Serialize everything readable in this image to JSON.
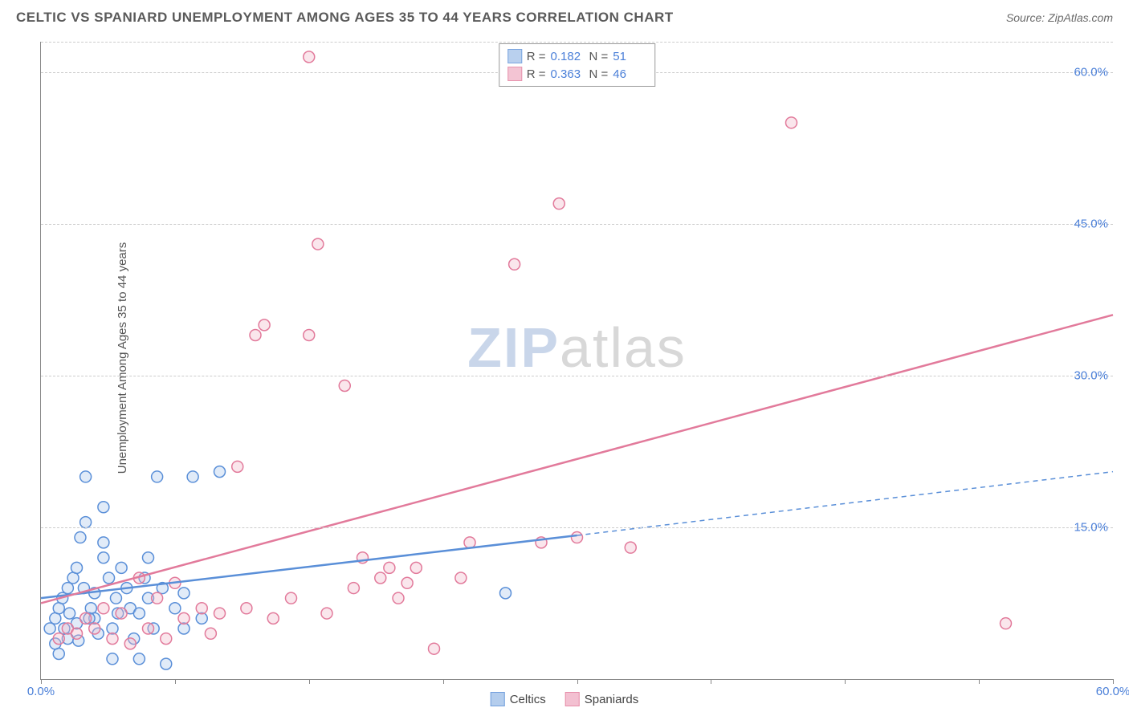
{
  "title": "CELTIC VS SPANIARD UNEMPLOYMENT AMONG AGES 35 TO 44 YEARS CORRELATION CHART",
  "source_prefix": "Source: ",
  "source_name": "ZipAtlas.com",
  "ylabel": "Unemployment Among Ages 35 to 44 years",
  "watermark_bold": "ZIP",
  "watermark_light": "atlas",
  "watermark_color_bold": "#c9d6ea",
  "watermark_color_light": "#d8d8d8",
  "chart": {
    "type": "scatter",
    "background_color": "#ffffff",
    "grid_color": "#cccccc",
    "axis_color": "#888888",
    "xlim": [
      0,
      60
    ],
    "ylim": [
      0,
      63
    ],
    "xticks": [
      0,
      7.5,
      15,
      22.5,
      30,
      37.5,
      45,
      52.5,
      60
    ],
    "xtick_labels": {
      "0": "0.0%",
      "60": "60.0%"
    },
    "yticks": [
      15,
      30,
      45,
      60
    ],
    "ytick_labels": {
      "15": "15.0%",
      "30": "30.0%",
      "45": "45.0%",
      "60": "60.0%"
    },
    "grid_top_extra": 63,
    "marker_radius": 7,
    "marker_stroke_width": 1.5,
    "marker_fill_opacity": 0.35,
    "series": [
      {
        "name": "Celtics",
        "color_stroke": "#5a8fd8",
        "color_fill": "#a8c5ea",
        "R": "0.182",
        "N": "51",
        "trend": {
          "x1": 0,
          "y1": 8,
          "x2": 30,
          "y2": 14.2,
          "dash_to_x": 60,
          "dash_to_y": 20.5,
          "width": 2.5
        },
        "points": [
          [
            0.5,
            5
          ],
          [
            0.8,
            6
          ],
          [
            1,
            7
          ],
          [
            1.2,
            8
          ],
          [
            1.5,
            4
          ],
          [
            1.5,
            9
          ],
          [
            1.8,
            10
          ],
          [
            2,
            5.5
          ],
          [
            2,
            11
          ],
          [
            2.2,
            14
          ],
          [
            2.5,
            15.5
          ],
          [
            2.5,
            20
          ],
          [
            2.8,
            7
          ],
          [
            3,
            6
          ],
          [
            3,
            8.5
          ],
          [
            3.5,
            12
          ],
          [
            3.5,
            13.5
          ],
          [
            3.5,
            17
          ],
          [
            4,
            2
          ],
          [
            4,
            5
          ],
          [
            4.2,
            8
          ],
          [
            4.5,
            11
          ],
          [
            5,
            7
          ],
          [
            5.5,
            2
          ],
          [
            5.5,
            6.5
          ],
          [
            6,
            8
          ],
          [
            6,
            12
          ],
          [
            6.5,
            20
          ],
          [
            7,
            1.5
          ],
          [
            7.5,
            7
          ],
          [
            8,
            5
          ],
          [
            8,
            8.5
          ],
          [
            8.5,
            20
          ],
          [
            9,
            6
          ],
          [
            10,
            20.5
          ],
          [
            26,
            8.5
          ],
          [
            0.8,
            3.5
          ],
          [
            1,
            2.5
          ],
          [
            1.3,
            5
          ],
          [
            1.6,
            6.5
          ],
          [
            2.1,
            3.8
          ],
          [
            2.4,
            9
          ],
          [
            2.7,
            6
          ],
          [
            3.2,
            4.5
          ],
          [
            3.8,
            10
          ],
          [
            4.3,
            6.5
          ],
          [
            4.8,
            9
          ],
          [
            5.2,
            4
          ],
          [
            5.8,
            10
          ],
          [
            6.3,
            5
          ],
          [
            6.8,
            9
          ]
        ]
      },
      {
        "name": "Spaniards",
        "color_stroke": "#e27a9b",
        "color_fill": "#f1b6c9",
        "R": "0.363",
        "N": "46",
        "trend": {
          "x1": 0,
          "y1": 7.5,
          "x2": 60,
          "y2": 36,
          "width": 2.5
        },
        "points": [
          [
            1,
            4
          ],
          [
            1.5,
            5
          ],
          [
            2,
            4.5
          ],
          [
            2.5,
            6
          ],
          [
            3,
            5
          ],
          [
            3.5,
            7
          ],
          [
            4,
            4
          ],
          [
            4.5,
            6.5
          ],
          [
            5,
            3.5
          ],
          [
            5.5,
            10
          ],
          [
            6,
            5
          ],
          [
            7,
            4
          ],
          [
            7.5,
            9.5
          ],
          [
            8,
            6
          ],
          [
            9,
            7
          ],
          [
            9.5,
            4.5
          ],
          [
            10,
            6.5
          ],
          [
            11,
            21
          ],
          [
            12,
            34
          ],
          [
            12.5,
            35
          ],
          [
            13,
            6
          ],
          [
            14,
            8
          ],
          [
            15,
            34
          ],
          [
            15,
            61.5
          ],
          [
            15.5,
            43
          ],
          [
            16,
            6.5
          ],
          [
            17,
            29
          ],
          [
            17.5,
            9
          ],
          [
            18,
            12
          ],
          [
            19,
            10
          ],
          [
            19.5,
            11
          ],
          [
            20,
            8
          ],
          [
            20.5,
            9.5
          ],
          [
            21,
            11
          ],
          [
            22,
            3
          ],
          [
            23.5,
            10
          ],
          [
            24,
            13.5
          ],
          [
            26.5,
            41
          ],
          [
            28,
            13.5
          ],
          [
            29,
            47
          ],
          [
            30,
            14
          ],
          [
            33,
            13
          ],
          [
            42,
            55
          ],
          [
            54,
            5.5
          ],
          [
            6.5,
            8
          ],
          [
            11.5,
            7
          ]
        ]
      }
    ]
  },
  "legend_top": [
    {
      "series_idx": 0,
      "R_label": "R =",
      "N_label": "N ="
    },
    {
      "series_idx": 1,
      "R_label": "R =",
      "N_label": "N ="
    }
  ],
  "legend_bottom": [
    {
      "series_idx": 0
    },
    {
      "series_idx": 1
    }
  ]
}
